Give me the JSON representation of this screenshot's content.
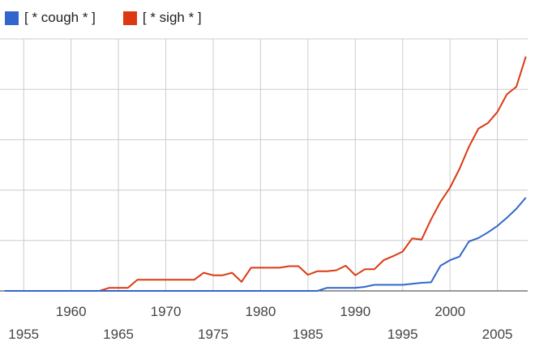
{
  "chart_data": {
    "type": "line",
    "title": "",
    "xlabel": "",
    "ylabel": "",
    "xlim": [
      1952.5,
      2008.2
    ],
    "ylim": [
      0,
      5
    ],
    "grid": true,
    "legend_position": "top-left",
    "x_ticks_upper": [
      "1960",
      "1970",
      "1980",
      "1990",
      "2000"
    ],
    "x_ticks_lower": [
      "1955",
      "1965",
      "1975",
      "1985",
      "1995",
      "2005"
    ],
    "series": [
      {
        "name": "[ * cough * ]",
        "color": "#3366cc",
        "points": [
          [
            1953,
            0
          ],
          [
            1986,
            0
          ],
          [
            1987,
            0.06
          ],
          [
            1990,
            0.06
          ],
          [
            1991,
            0.08
          ],
          [
            1992,
            0.12
          ],
          [
            1995,
            0.12
          ],
          [
            1996,
            0.14
          ],
          [
            1997,
            0.16
          ],
          [
            1998,
            0.17
          ],
          [
            1999,
            0.5
          ],
          [
            2000,
            0.61
          ],
          [
            2001,
            0.68
          ],
          [
            2002,
            0.98
          ],
          [
            2003,
            1.05
          ],
          [
            2004,
            1.16
          ],
          [
            2005,
            1.29
          ],
          [
            2006,
            1.45
          ],
          [
            2007,
            1.63
          ],
          [
            2008,
            1.85
          ]
        ]
      },
      {
        "name": "[ * sigh * ]",
        "color": "#dc3912",
        "points": [
          [
            1953,
            0
          ],
          [
            1963,
            0
          ],
          [
            1964,
            0.06
          ],
          [
            1966,
            0.06
          ],
          [
            1967,
            0.22
          ],
          [
            1973,
            0.22
          ],
          [
            1974,
            0.36
          ],
          [
            1975,
            0.31
          ],
          [
            1976,
            0.31
          ],
          [
            1977,
            0.36
          ],
          [
            1978,
            0.18
          ],
          [
            1979,
            0.46
          ],
          [
            1982,
            0.46
          ],
          [
            1983,
            0.49
          ],
          [
            1984,
            0.49
          ],
          [
            1985,
            0.32
          ],
          [
            1986,
            0.39
          ],
          [
            1987,
            0.39
          ],
          [
            1988,
            0.41
          ],
          [
            1989,
            0.5
          ],
          [
            1990,
            0.31
          ],
          [
            1991,
            0.43
          ],
          [
            1992,
            0.43
          ],
          [
            1993,
            0.61
          ],
          [
            1994,
            0.69
          ],
          [
            1995,
            0.78
          ],
          [
            1996,
            1.04
          ],
          [
            1997,
            1.02
          ],
          [
            1998,
            1.42
          ],
          [
            1999,
            1.77
          ],
          [
            2000,
            2.05
          ],
          [
            2001,
            2.42
          ],
          [
            2002,
            2.86
          ],
          [
            2003,
            3.22
          ],
          [
            2004,
            3.33
          ],
          [
            2005,
            3.55
          ],
          [
            2006,
            3.9
          ],
          [
            2007,
            4.05
          ],
          [
            2008,
            4.65
          ]
        ]
      }
    ]
  }
}
